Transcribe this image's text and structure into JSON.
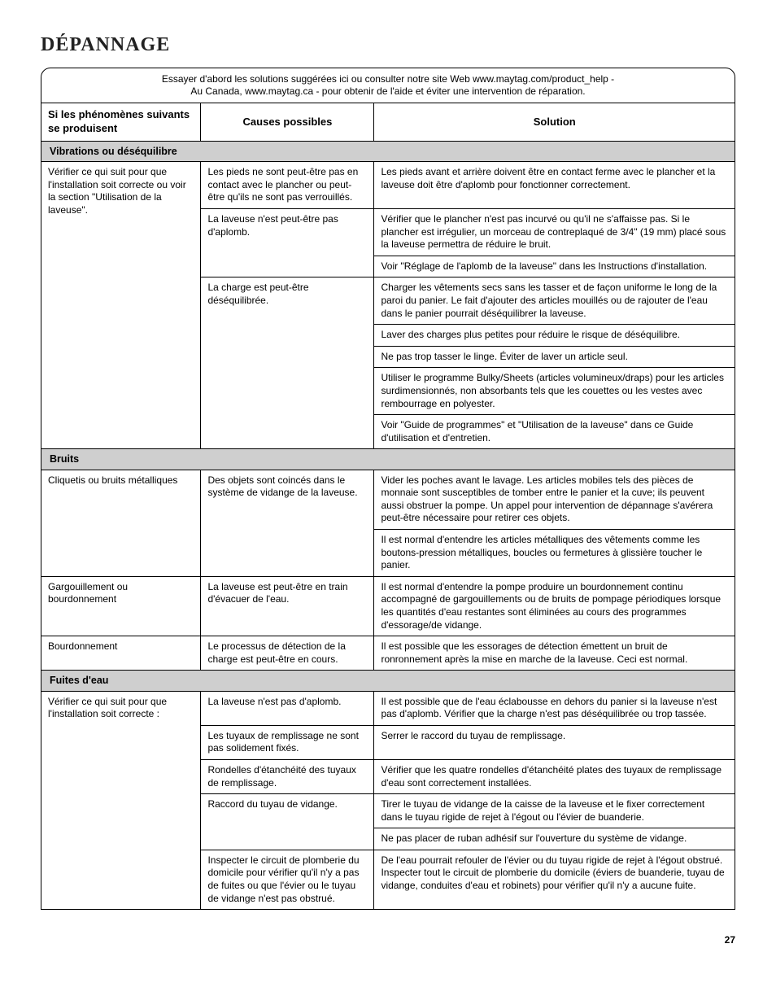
{
  "title": "DÉPANNAGE",
  "intro_lines": [
    "Essayer d'abord les solutions suggérées ici ou consulter notre site Web www.maytag.com/product_help -",
    "Au Canada, www.maytag.ca - pour obtenir de l'aide et éviter une intervention de réparation."
  ],
  "headers": {
    "col1": "Si les phénomènes suivants se produisent",
    "col2": "Causes possibles",
    "col3": "Solution"
  },
  "sections": [
    {
      "title": "Vibrations ou déséquilibre",
      "symptoms": [
        {
          "symptom": "Vérifier ce qui suit pour que l'installation soit correcte ou voir la section \"Utilisation de la laveuse\".",
          "causes": [
            {
              "cause": "Les pieds ne sont peut-être pas en contact avec le plancher ou peut-être qu'ils ne sont pas verrouillés.",
              "solutions": [
                "Les pieds avant et arrière doivent être en contact ferme avec le plancher et la laveuse doit être d'aplomb pour fonctionner correctement."
              ]
            },
            {
              "cause": "La laveuse n'est peut-être pas d'aplomb.",
              "solutions": [
                "Vérifier que le plancher n'est pas incurvé ou qu'il ne s'affaisse pas. Si le plancher est irrégulier, un morceau de contreplaqué de 3/4\" (19 mm) placé sous la laveuse permettra de réduire le bruit.",
                "Voir \"Réglage de l'aplomb de la laveuse\" dans les Instructions d'installation."
              ]
            },
            {
              "cause": "La charge est peut-être déséquilibrée.",
              "solutions": [
                "Charger les vêtements secs sans les tasser et de façon uniforme le long de la paroi du panier. Le fait d'ajouter des articles mouillés ou de rajouter de l'eau dans le panier pourrait déséquilibrer la laveuse.",
                "Laver des charges plus petites pour réduire le risque de déséquilibre.",
                "Ne pas trop tasser le linge. Éviter de laver un article seul.",
                "Utiliser le programme Bulky/Sheets (articles volumineux/draps) pour les articles surdimensionnés, non absorbants tels que les couettes ou les vestes avec rembourrage en polyester.",
                "Voir \"Guide de programmes\" et \"Utilisation de la laveuse\" dans ce Guide d'utilisation et d'entretien."
              ]
            }
          ]
        }
      ]
    },
    {
      "title": "Bruits",
      "symptoms": [
        {
          "symptom": "Cliquetis ou bruits métalliques",
          "causes": [
            {
              "cause": "Des objets sont coincés dans le système de vidange de la laveuse.",
              "solutions": [
                "Vider les poches avant le lavage. Les articles mobiles tels des pièces de monnaie sont susceptibles de tomber entre le panier et la cuve; ils peuvent aussi obstruer la pompe. Un appel pour intervention de dépannage s'avérera peut-être nécessaire pour retirer ces objets.",
                "Il est normal d'entendre les articles métalliques des vêtements comme les boutons-pression métalliques, boucles ou fermetures à glissière toucher le panier."
              ]
            }
          ]
        },
        {
          "symptom": "Gargouillement ou bourdonnement",
          "causes": [
            {
              "cause": "La laveuse est peut-être en train d'évacuer de l'eau.",
              "solutions": [
                "Il est normal d'entendre la pompe produire un bourdonnement continu accompagné de gargouillements ou de bruits de pompage périodiques lorsque les quantités d'eau restantes sont éliminées au cours des programmes d'essorage/de vidange."
              ]
            }
          ]
        },
        {
          "symptom": "Bourdonnement",
          "causes": [
            {
              "cause": "Le processus de détection de la charge est peut-être en cours.",
              "solutions": [
                "Il est possible que les essorages de détection émettent un bruit de ronronnement après la mise en marche de la laveuse. Ceci est normal."
              ]
            }
          ]
        }
      ]
    },
    {
      "title": "Fuites d'eau",
      "symptoms": [
        {
          "symptom": "Vérifier ce qui suit pour que l'installation soit correcte :",
          "causes": [
            {
              "cause": "La laveuse n'est pas d'aplomb.",
              "solutions": [
                "Il est possible que de l'eau éclabousse en dehors du panier si la laveuse n'est pas d'aplomb. Vérifier que la charge n'est pas déséquilibrée ou trop tassée."
              ]
            },
            {
              "cause": "Les tuyaux de remplissage ne sont pas solidement fixés.",
              "solutions": [
                "Serrer le raccord du tuyau de remplissage."
              ]
            },
            {
              "cause": "Rondelles d'étanchéité des tuyaux de remplissage.",
              "solutions": [
                "Vérifier que les quatre rondelles d'étanchéité plates des tuyaux de remplissage d'eau sont correctement installées."
              ]
            },
            {
              "cause": "Raccord du tuyau de vidange.",
              "solutions": [
                "Tirer le tuyau de vidange de la caisse de la laveuse et le fixer correctement dans le tuyau rigide de rejet à l'égout ou l'évier de buanderie.",
                "Ne pas placer de ruban adhésif sur l'ouverture du système de vidange."
              ]
            },
            {
              "cause": "Inspecter le circuit de plomberie du domicile pour vérifier qu'il n'y a pas de fuites ou que l'évier ou le tuyau de vidange n'est pas obstrué.",
              "solutions": [
                "De l'eau pourrait refouler de l'évier ou du tuyau rigide de rejet à l'égout obstrué. Inspecter tout le circuit de plomberie du domicile (éviers de buanderie, tuyau de vidange, conduites d'eau et robinets) pour vérifier qu'il n'y a aucune fuite."
              ]
            }
          ]
        }
      ]
    }
  ],
  "page_number": "27"
}
